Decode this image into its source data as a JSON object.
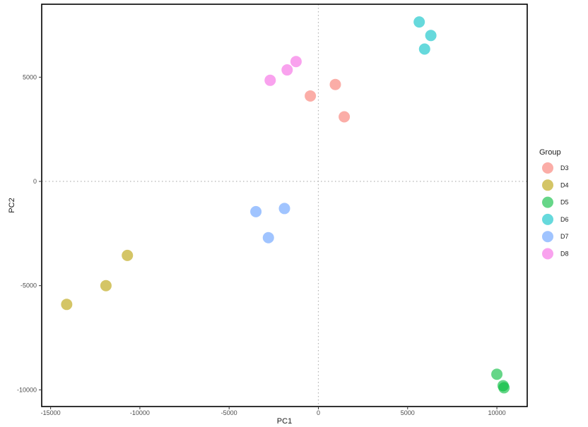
{
  "chart_data": {
    "type": "scatter",
    "xlabel": "PC1",
    "ylabel": "PC2",
    "xlim": [
      -15500,
      11700
    ],
    "ylim": [
      -10800,
      8500
    ],
    "x_ticks": [
      -15000,
      -10000,
      -5000,
      0,
      5000,
      10000
    ],
    "x_tick_labels": [
      "-15000",
      "-10000",
      "-5000",
      "0",
      "5000",
      "10000"
    ],
    "y_ticks": [
      -10000,
      -5000,
      0,
      5000
    ],
    "y_tick_labels": [
      "-10000",
      "-5000",
      "0",
      "5000"
    ],
    "reference_lines": {
      "x": 0,
      "y": 0,
      "style": "dotted"
    },
    "grid": false,
    "legend": {
      "title": "Group",
      "placement": "right"
    },
    "series": [
      {
        "name": "D3",
        "color": "#F8766D",
        "points": [
          [
            -450,
            4100
          ],
          [
            950,
            4650
          ],
          [
            1450,
            3100
          ]
        ]
      },
      {
        "name": "D4",
        "color": "#B79F00",
        "points": [
          [
            -14100,
            -5900
          ],
          [
            -11900,
            -5000
          ],
          [
            -10700,
            -3550
          ]
        ]
      },
      {
        "name": "D5",
        "color": "#00BA38",
        "points": [
          [
            10000,
            -9250
          ],
          [
            10350,
            -9800
          ],
          [
            10400,
            -9900
          ]
        ]
      },
      {
        "name": "D6",
        "color": "#00BFC4",
        "points": [
          [
            5650,
            7650
          ],
          [
            6300,
            7000
          ],
          [
            5950,
            6350
          ]
        ]
      },
      {
        "name": "D7",
        "color": "#619CFF",
        "points": [
          [
            -3500,
            -1450
          ],
          [
            -1900,
            -1300
          ],
          [
            -2800,
            -2700
          ]
        ]
      },
      {
        "name": "D8",
        "color": "#F564E3",
        "points": [
          [
            -2700,
            4850
          ],
          [
            -1750,
            5350
          ],
          [
            -1250,
            5750
          ]
        ]
      }
    ]
  }
}
